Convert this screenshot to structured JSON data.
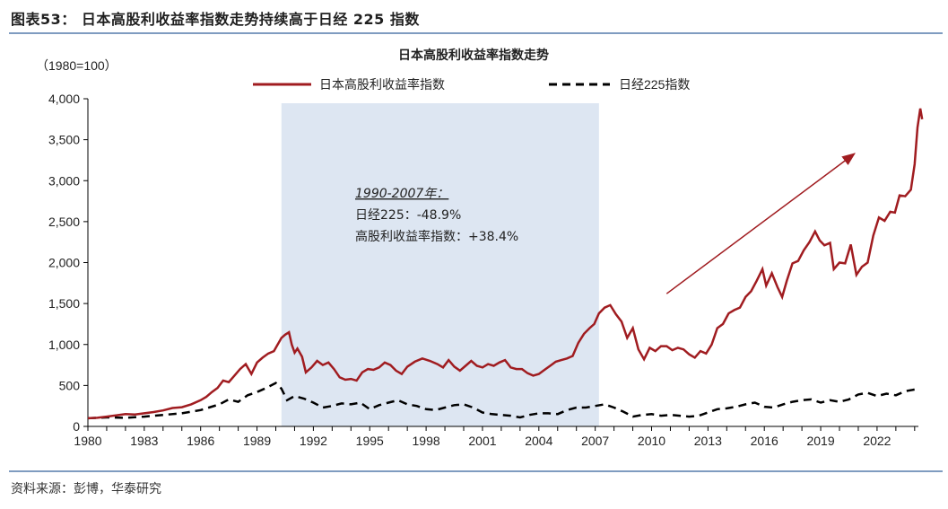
{
  "figure": {
    "title": "图表53： 日本高股利收益率指数走势持续高于日经 225 指数",
    "source": "资料来源：彭博，华泰研究"
  },
  "colors": {
    "accent": "#a01c20",
    "nikkei": "#000000",
    "shade": "#dde6f2",
    "rule": "#7f9cc0"
  },
  "chart_data": {
    "type": "line",
    "title": "日本高股利收益率指数走势",
    "ylabel": "（1980=100）",
    "xlabel": "",
    "ylim": [
      0,
      4000
    ],
    "xlim": [
      1980,
      2024.2
    ],
    "yticks": [
      0,
      500,
      1000,
      1500,
      2000,
      2500,
      3000,
      3500,
      4000
    ],
    "ytick_labels": [
      "0",
      "500",
      "1,000",
      "1,500",
      "2,000",
      "2,500",
      "3,000",
      "3,500",
      "4,000"
    ],
    "xticks": [
      1980,
      1983,
      1986,
      1989,
      1992,
      1995,
      1998,
      2001,
      2004,
      2007,
      2010,
      2013,
      2016,
      2019,
      2022
    ],
    "xtick_labels": [
      "1980",
      "1983",
      "1986",
      "1989",
      "1992",
      "1995",
      "1998",
      "2001",
      "2004",
      "2007",
      "2010",
      "2013",
      "2016",
      "2019",
      "2022"
    ],
    "shaded_region": [
      1990.3,
      2007.2
    ],
    "annotation": {
      "lines": [
        "1990-2007年：",
        "日经225：-48.9%",
        "高股利收益率指数：+38.4%"
      ],
      "arrow": {
        "from": [
          2010.8,
          1620
        ],
        "to": [
          2020.8,
          3330
        ]
      }
    },
    "series": [
      {
        "name": "日本高股利收益率指数",
        "style": "solid",
        "points": [
          [
            1980,
            100
          ],
          [
            1980.5,
            105
          ],
          [
            1981,
            120
          ],
          [
            1981.5,
            135
          ],
          [
            1982,
            150
          ],
          [
            1982.5,
            145
          ],
          [
            1983,
            160
          ],
          [
            1983.5,
            175
          ],
          [
            1984,
            195
          ],
          [
            1984.5,
            225
          ],
          [
            1985,
            235
          ],
          [
            1985.5,
            270
          ],
          [
            1986,
            320
          ],
          [
            1986.3,
            360
          ],
          [
            1986.6,
            420
          ],
          [
            1986.9,
            470
          ],
          [
            1987.2,
            560
          ],
          [
            1987.5,
            540
          ],
          [
            1987.8,
            620
          ],
          [
            1988.1,
            700
          ],
          [
            1988.4,
            760
          ],
          [
            1988.7,
            640
          ],
          [
            1989,
            780
          ],
          [
            1989.3,
            840
          ],
          [
            1989.6,
            890
          ],
          [
            1989.9,
            920
          ],
          [
            1990.1,
            1000
          ],
          [
            1990.3,
            1080
          ],
          [
            1990.5,
            1120
          ],
          [
            1990.7,
            1150
          ],
          [
            1990.85,
            1000
          ],
          [
            1991,
            900
          ],
          [
            1991.15,
            950
          ],
          [
            1991.4,
            850
          ],
          [
            1991.6,
            660
          ],
          [
            1991.9,
            720
          ],
          [
            1992.2,
            800
          ],
          [
            1992.5,
            750
          ],
          [
            1992.8,
            780
          ],
          [
            1993.1,
            700
          ],
          [
            1993.4,
            600
          ],
          [
            1993.7,
            570
          ],
          [
            1994,
            580
          ],
          [
            1994.3,
            560
          ],
          [
            1994.6,
            660
          ],
          [
            1994.9,
            700
          ],
          [
            1995.2,
            690
          ],
          [
            1995.5,
            720
          ],
          [
            1995.8,
            780
          ],
          [
            1996.1,
            750
          ],
          [
            1996.4,
            680
          ],
          [
            1996.7,
            640
          ],
          [
            1997,
            730
          ],
          [
            1997.4,
            790
          ],
          [
            1997.8,
            830
          ],
          [
            1998.2,
            800
          ],
          [
            1998.6,
            760
          ],
          [
            1998.9,
            720
          ],
          [
            1999.2,
            810
          ],
          [
            1999.5,
            730
          ],
          [
            1999.8,
            680
          ],
          [
            2000.1,
            740
          ],
          [
            2000.4,
            800
          ],
          [
            2000.7,
            740
          ],
          [
            2001,
            720
          ],
          [
            2001.3,
            760
          ],
          [
            2001.6,
            740
          ],
          [
            2001.9,
            780
          ],
          [
            2002.2,
            810
          ],
          [
            2002.5,
            720
          ],
          [
            2002.8,
            700
          ],
          [
            2003.1,
            700
          ],
          [
            2003.4,
            650
          ],
          [
            2003.7,
            620
          ],
          [
            2004,
            640
          ],
          [
            2004.3,
            690
          ],
          [
            2004.6,
            740
          ],
          [
            2004.9,
            790
          ],
          [
            2005.2,
            810
          ],
          [
            2005.5,
            830
          ],
          [
            2005.8,
            860
          ],
          [
            2006.1,
            1020
          ],
          [
            2006.4,
            1130
          ],
          [
            2006.7,
            1200
          ],
          [
            2006.95,
            1250
          ],
          [
            2007.2,
            1380
          ],
          [
            2007.5,
            1450
          ],
          [
            2007.8,
            1480
          ],
          [
            2008.1,
            1370
          ],
          [
            2008.4,
            1280
          ],
          [
            2008.7,
            1080
          ],
          [
            2009,
            1200
          ],
          [
            2009.3,
            940
          ],
          [
            2009.6,
            820
          ],
          [
            2009.9,
            960
          ],
          [
            2010.2,
            920
          ],
          [
            2010.5,
            980
          ],
          [
            2010.8,
            980
          ],
          [
            2011.1,
            930
          ],
          [
            2011.4,
            960
          ],
          [
            2011.7,
            940
          ],
          [
            2012,
            880
          ],
          [
            2012.3,
            840
          ],
          [
            2012.6,
            920
          ],
          [
            2012.9,
            890
          ],
          [
            2013.2,
            1000
          ],
          [
            2013.5,
            1200
          ],
          [
            2013.8,
            1250
          ],
          [
            2014.1,
            1380
          ],
          [
            2014.4,
            1420
          ],
          [
            2014.7,
            1450
          ],
          [
            2015,
            1580
          ],
          [
            2015.3,
            1650
          ],
          [
            2015.6,
            1780
          ],
          [
            2015.9,
            1920
          ],
          [
            2016.1,
            1720
          ],
          [
            2016.4,
            1870
          ],
          [
            2016.7,
            1700
          ],
          [
            2016.95,
            1580
          ],
          [
            2017.2,
            1780
          ],
          [
            2017.5,
            1990
          ],
          [
            2017.8,
            2020
          ],
          [
            2018.1,
            2150
          ],
          [
            2018.4,
            2250
          ],
          [
            2018.7,
            2380
          ],
          [
            2018.95,
            2270
          ],
          [
            2019.2,
            2210
          ],
          [
            2019.5,
            2240
          ],
          [
            2019.7,
            1920
          ],
          [
            2020,
            2000
          ],
          [
            2020.3,
            1990
          ],
          [
            2020.6,
            2220
          ],
          [
            2020.9,
            1850
          ],
          [
            2021.2,
            1950
          ],
          [
            2021.5,
            2000
          ],
          [
            2021.8,
            2330
          ],
          [
            2022.1,
            2550
          ],
          [
            2022.4,
            2510
          ],
          [
            2022.7,
            2620
          ],
          [
            2022.95,
            2610
          ],
          [
            2023.2,
            2820
          ],
          [
            2023.5,
            2810
          ],
          [
            2023.8,
            2890
          ],
          [
            2024,
            3200
          ],
          [
            2024.15,
            3650
          ],
          [
            2024.3,
            3880
          ],
          [
            2024.4,
            3750
          ]
        ]
      },
      {
        "name": "日经225指数",
        "style": "dashed",
        "points": [
          [
            1980,
            100
          ],
          [
            1981,
            110
          ],
          [
            1982,
            105
          ],
          [
            1983,
            120
          ],
          [
            1984,
            140
          ],
          [
            1985,
            160
          ],
          [
            1986,
            200
          ],
          [
            1987,
            270
          ],
          [
            1987.5,
            330
          ],
          [
            1988,
            300
          ],
          [
            1988.5,
            380
          ],
          [
            1989,
            420
          ],
          [
            1989.5,
            470
          ],
          [
            1990,
            530
          ],
          [
            1990.3,
            460
          ],
          [
            1990.6,
            320
          ],
          [
            1991,
            370
          ],
          [
            1991.5,
            340
          ],
          [
            1992,
            290
          ],
          [
            1992.5,
            230
          ],
          [
            1993,
            250
          ],
          [
            1993.5,
            280
          ],
          [
            1994,
            270
          ],
          [
            1994.5,
            290
          ],
          [
            1995,
            210
          ],
          [
            1995.5,
            260
          ],
          [
            1996,
            290
          ],
          [
            1996.5,
            320
          ],
          [
            1997,
            270
          ],
          [
            1997.5,
            250
          ],
          [
            1998,
            210
          ],
          [
            1998.5,
            200
          ],
          [
            1999,
            230
          ],
          [
            1999.5,
            260
          ],
          [
            2000,
            270
          ],
          [
            2000.5,
            230
          ],
          [
            2001,
            170
          ],
          [
            2001.5,
            150
          ],
          [
            2002,
            140
          ],
          [
            2002.5,
            130
          ],
          [
            2003,
            110
          ],
          [
            2003.5,
            140
          ],
          [
            2004,
            160
          ],
          [
            2004.5,
            160
          ],
          [
            2005,
            150
          ],
          [
            2005.5,
            200
          ],
          [
            2006,
            230
          ],
          [
            2006.5,
            230
          ],
          [
            2007,
            250
          ],
          [
            2007.5,
            270
          ],
          [
            2008,
            230
          ],
          [
            2008.5,
            180
          ],
          [
            2009,
            120
          ],
          [
            2009.5,
            140
          ],
          [
            2010,
            150
          ],
          [
            2010.5,
            130
          ],
          [
            2011,
            140
          ],
          [
            2011.5,
            130
          ],
          [
            2012,
            120
          ],
          [
            2012.5,
            130
          ],
          [
            2013,
            170
          ],
          [
            2013.5,
            210
          ],
          [
            2014,
            220
          ],
          [
            2014.5,
            240
          ],
          [
            2015,
            270
          ],
          [
            2015.5,
            290
          ],
          [
            2016,
            240
          ],
          [
            2016.5,
            230
          ],
          [
            2017,
            270
          ],
          [
            2017.5,
            300
          ],
          [
            2018,
            320
          ],
          [
            2018.5,
            330
          ],
          [
            2019,
            290
          ],
          [
            2019.5,
            320
          ],
          [
            2020,
            300
          ],
          [
            2020.5,
            330
          ],
          [
            2021,
            390
          ],
          [
            2021.5,
            410
          ],
          [
            2022,
            370
          ],
          [
            2022.5,
            400
          ],
          [
            2023,
            380
          ],
          [
            2023.5,
            430
          ],
          [
            2024,
            450
          ],
          [
            2024.2,
            470
          ]
        ]
      }
    ]
  }
}
